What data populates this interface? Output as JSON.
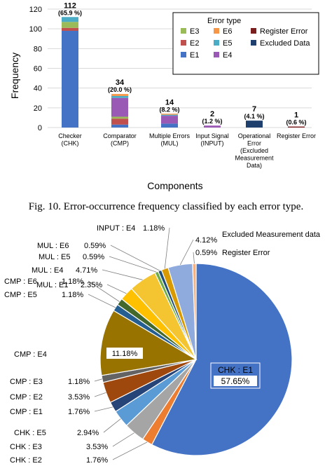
{
  "caption": "Fig. 10.   Error-occurrence frequency classified by each error type.",
  "chart_data": [
    {
      "type": "bar",
      "stacked": true,
      "xlabel": "Components",
      "ylabel": "Frequency",
      "ylim": [
        0,
        120
      ],
      "yticks": [
        "0",
        "20",
        "40",
        "60",
        "80",
        "100",
        "120"
      ],
      "grid": true,
      "legend_position": "top-right",
      "legend_title": "Error type",
      "categories": [
        "Checker\n(CHK)",
        "Comparator\n(CMP)",
        "Multiple Errors\n(MUL)",
        "Input Signal\n(INPUT)",
        "Operational\nError\n(Excluded\nMeasurement\nData)",
        "Register Error"
      ],
      "totals": [
        "112",
        "34",
        "14",
        "2",
        "7",
        "1"
      ],
      "percent_labels": [
        "(65.9 %)",
        "(20.0 %)",
        "(8.2 %)",
        "(1.2 %)",
        "(4.1 %)",
        "(0.6 %)"
      ],
      "series": [
        {
          "name": "E1",
          "color": "#4472C4",
          "values": [
            98,
            3,
            4,
            0,
            0,
            0
          ]
        },
        {
          "name": "E2",
          "color": "#C0504D",
          "values": [
            3,
            6,
            0,
            0,
            0,
            0
          ]
        },
        {
          "name": "E3",
          "color": "#9BBB59",
          "values": [
            6,
            2,
            0,
            0,
            0,
            0
          ]
        },
        {
          "name": "E4",
          "color": "#9B59B6",
          "values": [
            0,
            19,
            8,
            2,
            0,
            0
          ]
        },
        {
          "name": "E5",
          "color": "#4BACC6",
          "values": [
            5,
            2,
            1,
            0,
            0,
            0
          ]
        },
        {
          "name": "E6",
          "color": "#F79646",
          "values": [
            0,
            2,
            1,
            0,
            0,
            0
          ]
        },
        {
          "name": "Register Error",
          "color": "#7B1E1E",
          "values": [
            0,
            0,
            0,
            0,
            0,
            1
          ]
        },
        {
          "name": "Excluded Data",
          "color": "#1F3F6E",
          "values": [
            0,
            0,
            0,
            0,
            7,
            0
          ]
        }
      ],
      "legend_order": [
        "E3",
        "E6",
        "Register Error",
        "E2",
        "E5",
        "Excluded Data",
        "E1",
        "E4"
      ]
    },
    {
      "type": "pie",
      "slices": [
        {
          "label": "CHK : E1",
          "value": 57.65,
          "text": "57.65%",
          "color": "#4472C4"
        },
        {
          "label": "CHK : E2",
          "value": 1.76,
          "text": "1.76%",
          "color": "#ED7D31"
        },
        {
          "label": "CHK : E3",
          "value": 3.53,
          "text": "3.53%",
          "color": "#A5A5A5"
        },
        {
          "label": "CHK : E5",
          "value": 2.94,
          "text": "2.94%",
          "color": "#5B9BD5"
        },
        {
          "label": "CMP : E1",
          "value": 1.76,
          "text": "1.76%",
          "color": "#264478"
        },
        {
          "label": "CMP : E2",
          "value": 3.53,
          "text": "3.53%",
          "color": "#9E480E"
        },
        {
          "label": "CMP : E3",
          "value": 1.18,
          "text": "1.18%",
          "color": "#636363"
        },
        {
          "label": "CMP : E4",
          "value": 11.18,
          "text": "11.18%",
          "color": "#997300"
        },
        {
          "label": "CMP : E5",
          "value": 1.18,
          "text": "1.18%",
          "color": "#255E91"
        },
        {
          "label": "CMP : E6",
          "value": 1.18,
          "text": "1.18%",
          "color": "#43682B"
        },
        {
          "label": "MUL : E1",
          "value": 2.35,
          "text": "2.35%",
          "color": "#FFC000"
        },
        {
          "label": "MUL : E4",
          "value": 4.71,
          "text": "4.71%",
          "color": "#F4C531"
        },
        {
          "label": "MUL : E5",
          "value": 0.59,
          "text": "0.59%",
          "color": "#70AD47"
        },
        {
          "label": "MUL : E6",
          "value": 0.59,
          "text": "0.59%",
          "color": "#1F4E79"
        },
        {
          "label": "INPUT : E4",
          "value": 1.18,
          "text": "1.18%",
          "color": "#D89A00"
        },
        {
          "label": "Excluded Measurement data",
          "value": 4.12,
          "text": "4.12%",
          "color": "#8FAADC"
        },
        {
          "label": "Register Error",
          "value": 0.59,
          "text": "0.59%",
          "color": "#F4B183"
        }
      ]
    }
  ]
}
